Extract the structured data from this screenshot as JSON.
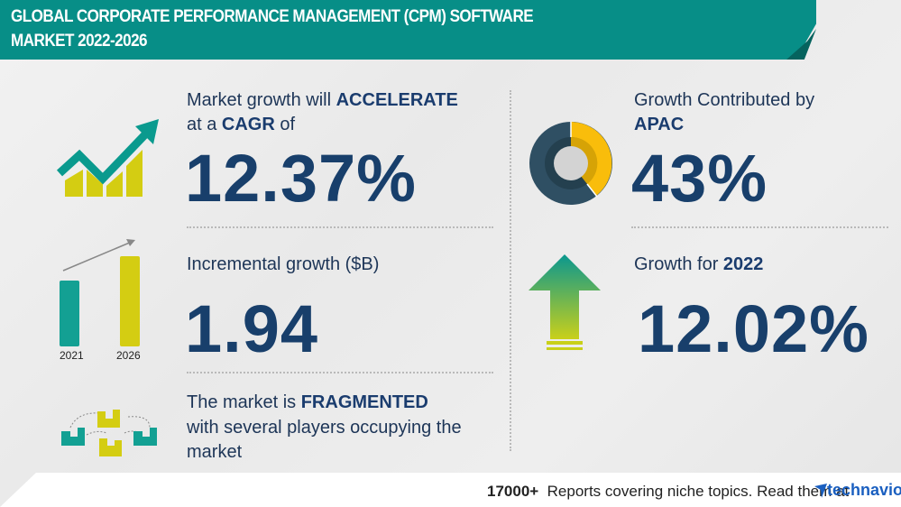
{
  "header": {
    "title_line1": "GLOBAL CORPORATE PERFORMANCE MANAGEMENT (CPM) SOFTWARE",
    "title_line2": "MARKET 2022-2026"
  },
  "cagr": {
    "line1_prefix": "Market growth will",
    "line1_emphasis": "ACCELERATE",
    "line2_prefix": "at a",
    "line2_emphasis": "CAGR",
    "line2_suffix": "of",
    "value": "12.37%",
    "icon": "trend-up-chart-icon"
  },
  "incremental": {
    "label": "Incremental growth ($B)",
    "value": "1.94",
    "icon": "bar-growth-icon",
    "bar_labels": [
      "2021",
      "2026"
    ]
  },
  "fragmented": {
    "line1_prefix": "The market is",
    "line1_emphasis": "FRAGMENTED",
    "line2": "with several players occupying the",
    "line3": "market",
    "icon": "buildings-network-icon"
  },
  "region": {
    "line1": "Growth Contributed by",
    "line2": "APAC",
    "value": "43%",
    "share_percent": 43,
    "icon": "donut-chart-icon"
  },
  "yoy": {
    "label_prefix": "Growth for",
    "label_emphasis": "2022",
    "value": "12.02%",
    "icon": "up-arrow-icon"
  },
  "footer": {
    "count": "17000+",
    "text": "Reports covering niche topics. Read them at",
    "brand": "technavio"
  },
  "colors": {
    "teal": "#078e87",
    "navy": "#183f6b",
    "yellow": "#d4cd12",
    "donut_dark": "#2f4f63",
    "donut_yellow": "#f9bd0b"
  }
}
